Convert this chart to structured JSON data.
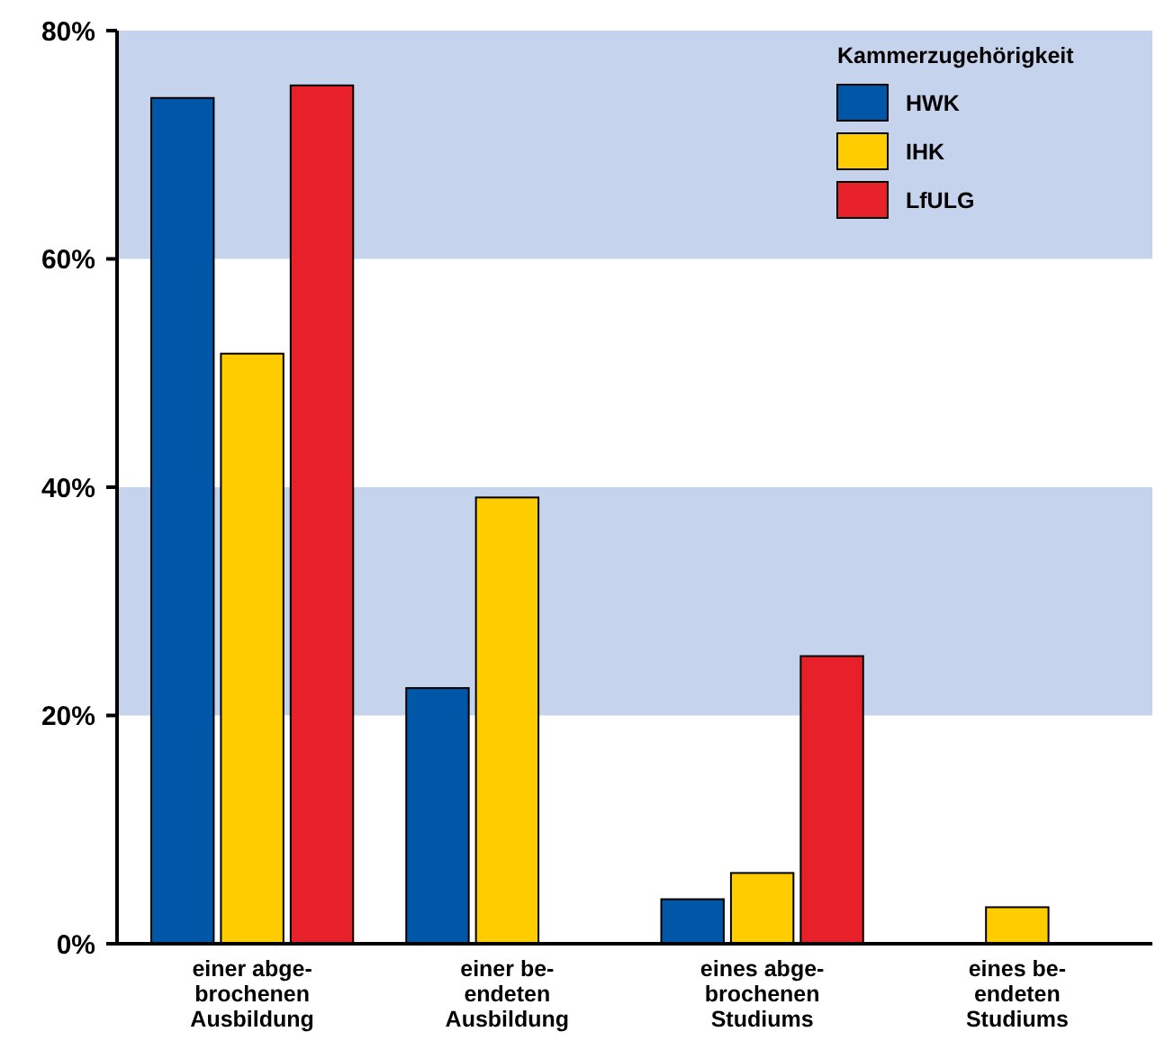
{
  "chart_data": {
    "type": "bar",
    "categories": [
      "einer abge-\nbrochenen\nAusbildung",
      "einer be-\nendeten\nAusbildung",
      "eines abge-\nbrochenen\nStudiums",
      "eines be-\nendeten\nStudiums"
    ],
    "series": [
      {
        "name": "HWK",
        "color": "#0057a8",
        "values": [
          74.1,
          22.4,
          3.9,
          null
        ]
      },
      {
        "name": "IHK",
        "color": "#ffcc00",
        "values": [
          51.7,
          39.1,
          6.2,
          3.2
        ]
      },
      {
        "name": "LfULG",
        "color": "#e8202a",
        "values": [
          75.2,
          null,
          25.2,
          null
        ]
      }
    ],
    "ylim": [
      0,
      80
    ],
    "yticks": [
      {
        "value": 0,
        "label": "0%"
      },
      {
        "value": 20,
        "label": "20%"
      },
      {
        "value": 40,
        "label": "40%"
      },
      {
        "value": 60,
        "label": "60%"
      },
      {
        "value": 80,
        "label": "80%"
      }
    ],
    "bands": [
      {
        "axis": "y",
        "from": 20,
        "to": 40,
        "color": "#c5d3ec"
      },
      {
        "axis": "y",
        "from": 60,
        "to": 80,
        "color": "#c5d3ec"
      }
    ],
    "grid": false,
    "legend": "top right",
    "legend_title": "Kammerzugehörigkeit"
  }
}
